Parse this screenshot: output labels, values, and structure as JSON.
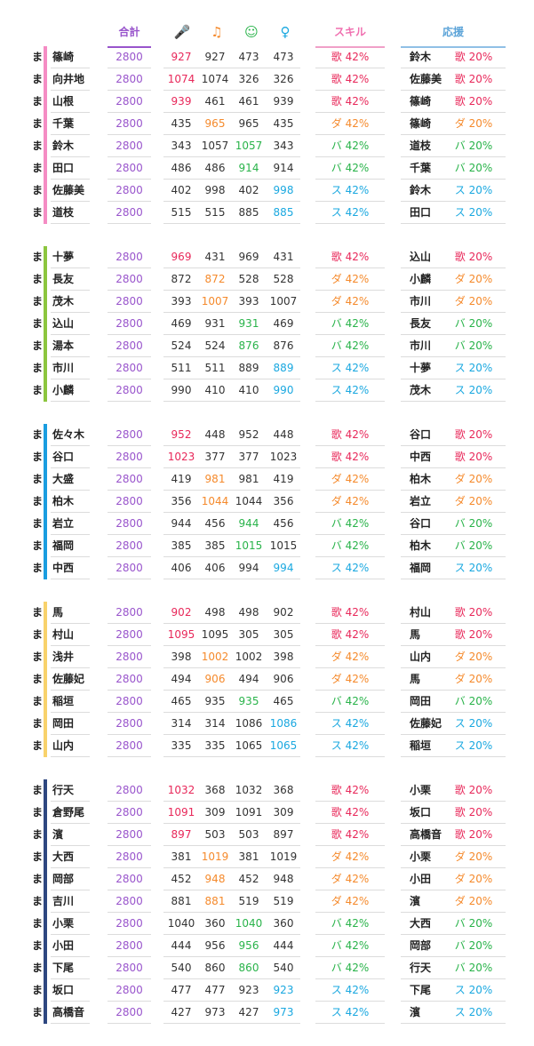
{
  "header": {
    "total_label": "合計",
    "skill_label": "スキル",
    "support_label": "応援",
    "icons": [
      "microphone-icon",
      "music-note-icon",
      "smile-face-icon",
      "vocal-character-icon"
    ],
    "icon_glyphs": [
      "🎤",
      "♫",
      "☺",
      "♀"
    ]
  },
  "colors": {
    "total": "#9955cc",
    "sing": "#e8285a",
    "dance": "#f58a2c",
    "visual": "#29b34a",
    "vocal": "#1aa8e0",
    "group_bars": [
      "#f58cc4",
      "#8cc63e",
      "#1a9de0",
      "#f8d26b",
      "#2e4780"
    ]
  },
  "groups": [
    {
      "rows": [
        {
          "mark": "ま",
          "name": "篠崎",
          "total": "2800",
          "stats": [
            "927",
            "927",
            "473",
            "473"
          ],
          "skill_type": "歌",
          "skill_val": "42%",
          "support_name": "鈴木",
          "support_type": "歌",
          "support_val": "20%"
        },
        {
          "mark": "ま",
          "name": "向井地",
          "total": "2800",
          "stats": [
            "1074",
            "1074",
            "326",
            "326"
          ],
          "skill_type": "歌",
          "skill_val": "42%",
          "support_name": "佐藤美",
          "support_type": "歌",
          "support_val": "20%"
        },
        {
          "mark": "ま",
          "name": "山根",
          "total": "2800",
          "stats": [
            "939",
            "461",
            "461",
            "939"
          ],
          "skill_type": "歌",
          "skill_val": "42%",
          "support_name": "篠崎",
          "support_type": "歌",
          "support_val": "20%"
        },
        {
          "mark": "ま",
          "name": "千葉",
          "total": "2800",
          "stats": [
            "435",
            "965",
            "965",
            "435"
          ],
          "skill_type": "ダ",
          "skill_val": "42%",
          "support_name": "篠崎",
          "support_type": "ダ",
          "support_val": "20%"
        },
        {
          "mark": "ま",
          "name": "鈴木",
          "total": "2800",
          "stats": [
            "343",
            "1057",
            "1057",
            "343"
          ],
          "skill_type": "バ",
          "skill_val": "42%",
          "support_name": "道枝",
          "support_type": "バ",
          "support_val": "20%"
        },
        {
          "mark": "ま",
          "name": "田口",
          "total": "2800",
          "stats": [
            "486",
            "486",
            "914",
            "914"
          ],
          "skill_type": "バ",
          "skill_val": "42%",
          "support_name": "千葉",
          "support_type": "バ",
          "support_val": "20%"
        },
        {
          "mark": "ま",
          "name": "佐藤美",
          "total": "2800",
          "stats": [
            "402",
            "998",
            "402",
            "998"
          ],
          "skill_type": "ス",
          "skill_val": "42%",
          "support_name": "鈴木",
          "support_type": "ス",
          "support_val": "20%"
        },
        {
          "mark": "ま",
          "name": "道枝",
          "total": "2800",
          "stats": [
            "515",
            "515",
            "885",
            "885"
          ],
          "skill_type": "ス",
          "skill_val": "42%",
          "support_name": "田口",
          "support_type": "ス",
          "support_val": "20%"
        }
      ]
    },
    {
      "rows": [
        {
          "mark": "ま",
          "name": "十夢",
          "total": "2800",
          "stats": [
            "969",
            "431",
            "969",
            "431"
          ],
          "skill_type": "歌",
          "skill_val": "42%",
          "support_name": "込山",
          "support_type": "歌",
          "support_val": "20%"
        },
        {
          "mark": "ま",
          "name": "長友",
          "total": "2800",
          "stats": [
            "872",
            "872",
            "528",
            "528"
          ],
          "skill_type": "ダ",
          "skill_val": "42%",
          "support_name": "小麟",
          "support_type": "ダ",
          "support_val": "20%"
        },
        {
          "mark": "ま",
          "name": "茂木",
          "total": "2800",
          "stats": [
            "393",
            "1007",
            "393",
            "1007"
          ],
          "skill_type": "ダ",
          "skill_val": "42%",
          "support_name": "市川",
          "support_type": "ダ",
          "support_val": "20%"
        },
        {
          "mark": "ま",
          "name": "込山",
          "total": "2800",
          "stats": [
            "469",
            "931",
            "931",
            "469"
          ],
          "skill_type": "バ",
          "skill_val": "42%",
          "support_name": "長友",
          "support_type": "バ",
          "support_val": "20%"
        },
        {
          "mark": "ま",
          "name": "湯本",
          "total": "2800",
          "stats": [
            "524",
            "524",
            "876",
            "876"
          ],
          "skill_type": "バ",
          "skill_val": "42%",
          "support_name": "市川",
          "support_type": "バ",
          "support_val": "20%"
        },
        {
          "mark": "ま",
          "name": "市川",
          "total": "2800",
          "stats": [
            "511",
            "511",
            "889",
            "889"
          ],
          "skill_type": "ス",
          "skill_val": "42%",
          "support_name": "十夢",
          "support_type": "ス",
          "support_val": "20%"
        },
        {
          "mark": "ま",
          "name": "小麟",
          "total": "2800",
          "stats": [
            "990",
            "410",
            "410",
            "990"
          ],
          "skill_type": "ス",
          "skill_val": "42%",
          "support_name": "茂木",
          "support_type": "ス",
          "support_val": "20%"
        }
      ]
    },
    {
      "rows": [
        {
          "mark": "ま",
          "name": "佐々木",
          "total": "2800",
          "stats": [
            "952",
            "448",
            "952",
            "448"
          ],
          "skill_type": "歌",
          "skill_val": "42%",
          "support_name": "谷口",
          "support_type": "歌",
          "support_val": "20%"
        },
        {
          "mark": "ま",
          "name": "谷口",
          "total": "2800",
          "stats": [
            "1023",
            "377",
            "377",
            "1023"
          ],
          "skill_type": "歌",
          "skill_val": "42%",
          "support_name": "中西",
          "support_type": "歌",
          "support_val": "20%"
        },
        {
          "mark": "ま",
          "name": "大盛",
          "total": "2800",
          "stats": [
            "419",
            "981",
            "981",
            "419"
          ],
          "skill_type": "ダ",
          "skill_val": "42%",
          "support_name": "柏木",
          "support_type": "ダ",
          "support_val": "20%"
        },
        {
          "mark": "ま",
          "name": "柏木",
          "total": "2800",
          "stats": [
            "356",
            "1044",
            "1044",
            "356"
          ],
          "skill_type": "ダ",
          "skill_val": "42%",
          "support_name": "岩立",
          "support_type": "ダ",
          "support_val": "20%"
        },
        {
          "mark": "ま",
          "name": "岩立",
          "total": "2800",
          "stats": [
            "944",
            "456",
            "944",
            "456"
          ],
          "skill_type": "バ",
          "skill_val": "42%",
          "support_name": "谷口",
          "support_type": "バ",
          "support_val": "20%"
        },
        {
          "mark": "ま",
          "name": "福岡",
          "total": "2800",
          "stats": [
            "385",
            "385",
            "1015",
            "1015"
          ],
          "skill_type": "バ",
          "skill_val": "42%",
          "support_name": "柏木",
          "support_type": "バ",
          "support_val": "20%"
        },
        {
          "mark": "ま",
          "name": "中西",
          "total": "2800",
          "stats": [
            "406",
            "406",
            "994",
            "994"
          ],
          "skill_type": "ス",
          "skill_val": "42%",
          "support_name": "福岡",
          "support_type": "ス",
          "support_val": "20%"
        }
      ]
    },
    {
      "rows": [
        {
          "mark": "ま",
          "name": "馬",
          "total": "2800",
          "stats": [
            "902",
            "498",
            "498",
            "902"
          ],
          "skill_type": "歌",
          "skill_val": "42%",
          "support_name": "村山",
          "support_type": "歌",
          "support_val": "20%"
        },
        {
          "mark": "ま",
          "name": "村山",
          "total": "2800",
          "stats": [
            "1095",
            "1095",
            "305",
            "305"
          ],
          "skill_type": "歌",
          "skill_val": "42%",
          "support_name": "馬",
          "support_type": "歌",
          "support_val": "20%"
        },
        {
          "mark": "ま",
          "name": "浅井",
          "total": "2800",
          "stats": [
            "398",
            "1002",
            "1002",
            "398"
          ],
          "skill_type": "ダ",
          "skill_val": "42%",
          "support_name": "山内",
          "support_type": "ダ",
          "support_val": "20%"
        },
        {
          "mark": "ま",
          "name": "佐藤妃",
          "total": "2800",
          "stats": [
            "494",
            "906",
            "494",
            "906"
          ],
          "skill_type": "ダ",
          "skill_val": "42%",
          "support_name": "馬",
          "support_type": "ダ",
          "support_val": "20%"
        },
        {
          "mark": "ま",
          "name": "稲垣",
          "total": "2800",
          "stats": [
            "465",
            "935",
            "935",
            "465"
          ],
          "skill_type": "バ",
          "skill_val": "42%",
          "support_name": "岡田",
          "support_type": "バ",
          "support_val": "20%"
        },
        {
          "mark": "ま",
          "name": "岡田",
          "total": "2800",
          "stats": [
            "314",
            "314",
            "1086",
            "1086"
          ],
          "skill_type": "ス",
          "skill_val": "42%",
          "support_name": "佐藤妃",
          "support_type": "ス",
          "support_val": "20%"
        },
        {
          "mark": "ま",
          "name": "山内",
          "total": "2800",
          "stats": [
            "335",
            "335",
            "1065",
            "1065"
          ],
          "skill_type": "ス",
          "skill_val": "42%",
          "support_name": "稲垣",
          "support_type": "ス",
          "support_val": "20%"
        }
      ]
    },
    {
      "rows": [
        {
          "mark": "ま",
          "name": "行天",
          "total": "2800",
          "stats": [
            "1032",
            "368",
            "1032",
            "368"
          ],
          "skill_type": "歌",
          "skill_val": "42%",
          "support_name": "小栗",
          "support_type": "歌",
          "support_val": "20%"
        },
        {
          "mark": "ま",
          "name": "倉野尾",
          "total": "2800",
          "stats": [
            "1091",
            "309",
            "1091",
            "309"
          ],
          "skill_type": "歌",
          "skill_val": "42%",
          "support_name": "坂口",
          "support_type": "歌",
          "support_val": "20%"
        },
        {
          "mark": "ま",
          "name": "濱",
          "total": "2800",
          "stats": [
            "897",
            "503",
            "503",
            "897"
          ],
          "skill_type": "歌",
          "skill_val": "42%",
          "support_name": "高橋音",
          "support_type": "歌",
          "support_val": "20%"
        },
        {
          "mark": "ま",
          "name": "大西",
          "total": "2800",
          "stats": [
            "381",
            "1019",
            "381",
            "1019"
          ],
          "skill_type": "ダ",
          "skill_val": "42%",
          "support_name": "小栗",
          "support_type": "ダ",
          "support_val": "20%"
        },
        {
          "mark": "ま",
          "name": "岡部",
          "total": "2800",
          "stats": [
            "452",
            "948",
            "452",
            "948"
          ],
          "skill_type": "ダ",
          "skill_val": "42%",
          "support_name": "小田",
          "support_type": "ダ",
          "support_val": "20%"
        },
        {
          "mark": "ま",
          "name": "吉川",
          "total": "2800",
          "stats": [
            "881",
            "881",
            "519",
            "519"
          ],
          "skill_type": "ダ",
          "skill_val": "42%",
          "support_name": "濱",
          "support_type": "ダ",
          "support_val": "20%"
        },
        {
          "mark": "ま",
          "name": "小栗",
          "total": "2800",
          "stats": [
            "1040",
            "360",
            "1040",
            "360"
          ],
          "skill_type": "バ",
          "skill_val": "42%",
          "support_name": "大西",
          "support_type": "バ",
          "support_val": "20%"
        },
        {
          "mark": "ま",
          "name": "小田",
          "total": "2800",
          "stats": [
            "444",
            "956",
            "956",
            "444"
          ],
          "skill_type": "バ",
          "skill_val": "42%",
          "support_name": "岡部",
          "support_type": "バ",
          "support_val": "20%"
        },
        {
          "mark": "ま",
          "name": "下尾",
          "total": "2800",
          "stats": [
            "540",
            "860",
            "860",
            "540"
          ],
          "skill_type": "バ",
          "skill_val": "42%",
          "support_name": "行天",
          "support_type": "バ",
          "support_val": "20%"
        },
        {
          "mark": "ま",
          "name": "坂口",
          "total": "2800",
          "stats": [
            "477",
            "477",
            "923",
            "923"
          ],
          "skill_type": "ス",
          "skill_val": "42%",
          "support_name": "下尾",
          "support_type": "ス",
          "support_val": "20%"
        },
        {
          "mark": "ま",
          "name": "高橋音",
          "total": "2800",
          "stats": [
            "427",
            "973",
            "427",
            "973"
          ],
          "skill_type": "ス",
          "skill_val": "42%",
          "support_name": "濱",
          "support_type": "ス",
          "support_val": "20%"
        }
      ]
    }
  ]
}
